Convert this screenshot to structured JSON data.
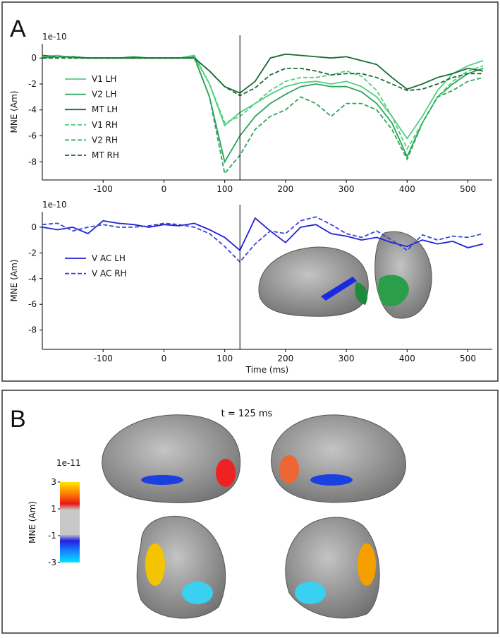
{
  "panel_labels": [
    "A",
    "B"
  ],
  "chart_data": [
    {
      "type": "line",
      "ylabel": "MNE (Am)",
      "offset_label": "1e-10",
      "x": [
        -200,
        -175,
        -150,
        -125,
        -100,
        -75,
        -50,
        -25,
        0,
        25,
        50,
        75,
        100,
        125,
        150,
        175,
        200,
        225,
        250,
        275,
        300,
        325,
        350,
        375,
        400,
        425,
        450,
        475,
        500,
        525
      ],
      "xlim": [
        -200,
        540
      ],
      "xticks": [
        -100,
        0,
        100,
        200,
        300,
        400,
        500
      ],
      "ylim": [
        -9.4,
        1.1
      ],
      "yticks": [
        0,
        -2,
        -4,
        -6,
        -8
      ],
      "vline": 125,
      "legend": "upper left",
      "series": [
        {
          "name": "V1 LH",
          "color": "#4fcf7e",
          "linestyle": "solid",
          "values": [
            0.1,
            0.2,
            0,
            0,
            0,
            0,
            0,
            0,
            0,
            0,
            0.2,
            -2,
            -5.2,
            -4.2,
            -3.5,
            -2.8,
            -2.2,
            -1.9,
            -1.8,
            -2,
            -1.8,
            -2.2,
            -3,
            -4.5,
            -6.2,
            -4.5,
            -2.5,
            -1.2,
            -0.6,
            -0.2
          ]
        },
        {
          "name": "V2 LH",
          "color": "#2aa558",
          "linestyle": "solid",
          "values": [
            0,
            0.1,
            0.1,
            0,
            0,
            0,
            0.1,
            0,
            0,
            0,
            0.1,
            -3,
            -8,
            -6,
            -4.5,
            -3.5,
            -2.8,
            -2.2,
            -2,
            -2.2,
            -2.2,
            -2.6,
            -3.5,
            -5,
            -7.6,
            -5,
            -3,
            -2,
            -1.2,
            -0.8
          ]
        },
        {
          "name": "MT LH",
          "color": "#1a6a34",
          "linestyle": "solid",
          "values": [
            0.2,
            0.1,
            0.1,
            0,
            0,
            0,
            0,
            0,
            0,
            0,
            0,
            -1,
            -2.2,
            -2.7,
            -1.8,
            0,
            0.3,
            0.2,
            0.1,
            0,
            0.1,
            -0.2,
            -0.5,
            -1.5,
            -2.4,
            -2,
            -1.5,
            -1.2,
            -0.8,
            -1
          ]
        },
        {
          "name": "V1 RH",
          "color": "#4fcf7e",
          "linestyle": "dashed",
          "values": [
            0,
            0.1,
            0,
            0,
            0,
            0,
            0,
            0,
            0,
            0,
            0.1,
            -2,
            -5,
            -4.5,
            -3.5,
            -2.5,
            -1.8,
            -1.5,
            -1.5,
            -1.3,
            -1,
            -1.4,
            -2.5,
            -4.5,
            -7,
            -5,
            -3,
            -1.8,
            -1,
            -0.6
          ]
        },
        {
          "name": "V2 RH",
          "color": "#2aa558",
          "linestyle": "dashed",
          "values": [
            0,
            0,
            0.1,
            0,
            0,
            0,
            0,
            0,
            0,
            0,
            0,
            -3,
            -8.9,
            -7.5,
            -5.5,
            -4.5,
            -4,
            -3,
            -3.5,
            -4.5,
            -3.5,
            -3.5,
            -4,
            -5.5,
            -7.8,
            -5,
            -3,
            -2.5,
            -1.8,
            -1.5
          ]
        },
        {
          "name": "MT RH",
          "color": "#1a6a34",
          "linestyle": "dashed",
          "values": [
            0,
            0,
            0,
            0,
            0,
            0,
            0,
            0,
            0,
            0,
            0,
            -1,
            -2.2,
            -2.9,
            -2.3,
            -1.3,
            -0.8,
            -0.8,
            -1,
            -1.3,
            -1.2,
            -1.2,
            -1.5,
            -2,
            -2.5,
            -2.4,
            -2,
            -1.5,
            -1.2,
            -1.2
          ]
        }
      ]
    },
    {
      "type": "line",
      "ylabel": "MNE (Am)",
      "xlabel": "Time (ms)",
      "offset_label": "1e-10",
      "x": [
        -200,
        -175,
        -150,
        -125,
        -100,
        -75,
        -50,
        -25,
        0,
        25,
        50,
        75,
        100,
        125,
        150,
        175,
        200,
        225,
        250,
        275,
        300,
        325,
        350,
        375,
        400,
        425,
        450,
        475,
        500,
        525
      ],
      "xlim": [
        -200,
        540
      ],
      "xticks": [
        -100,
        0,
        100,
        200,
        300,
        400,
        500
      ],
      "ylim": [
        -9.5,
        1.2
      ],
      "yticks": [
        0,
        -2,
        -4,
        -6,
        -8
      ],
      "vline": 125,
      "legend": "center left",
      "series": [
        {
          "name": "V AC LH",
          "color": "#1f22d6",
          "linestyle": "solid",
          "values": [
            0,
            -0.2,
            0,
            -0.5,
            0.5,
            0.3,
            0.2,
            0,
            0.2,
            0.1,
            0.3,
            -0.2,
            -0.8,
            -1.8,
            0.7,
            -0.3,
            -1.2,
            0,
            0.2,
            -0.5,
            -0.7,
            -1,
            -0.8,
            -1.2,
            -1.5,
            -1,
            -1.3,
            -1.1,
            -1.6,
            -1.3
          ]
        },
        {
          "name": "V AC RH",
          "color": "#3a44d8",
          "linestyle": "dashed",
          "values": [
            0.2,
            0.3,
            -0.3,
            0,
            0.2,
            0,
            0,
            0.1,
            0.3,
            0.2,
            0,
            -0.5,
            -1.5,
            -2.7,
            -1.3,
            -0.3,
            -0.5,
            0.5,
            0.8,
            0.2,
            -0.5,
            -0.8,
            -0.3,
            -1,
            -1.8,
            -0.6,
            -1,
            -0.7,
            -0.8,
            -0.5
          ]
        }
      ]
    }
  ],
  "panel_b": {
    "title": "t = 125 ms",
    "colorbar": {
      "label": "MNE (Am)",
      "offset_label": "1e-11",
      "lim": [
        -3,
        3
      ],
      "ticks": [
        3,
        1,
        -1,
        -3
      ]
    }
  }
}
